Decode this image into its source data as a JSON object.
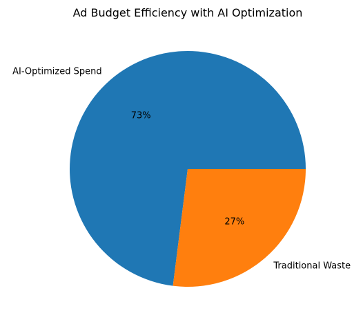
{
  "chart_data": {
    "type": "pie",
    "title": "Ad Budget Efficiency with AI Optimization",
    "labels": [
      "AI-Optimized Spend",
      "Traditional Waste"
    ],
    "values": [
      73,
      27
    ],
    "percent_labels": [
      "73%",
      "27%"
    ],
    "colors": [
      "#1f77b4",
      "#ff7f0e"
    ],
    "start_angle_deg": 0,
    "direction": "counterclockwise"
  }
}
